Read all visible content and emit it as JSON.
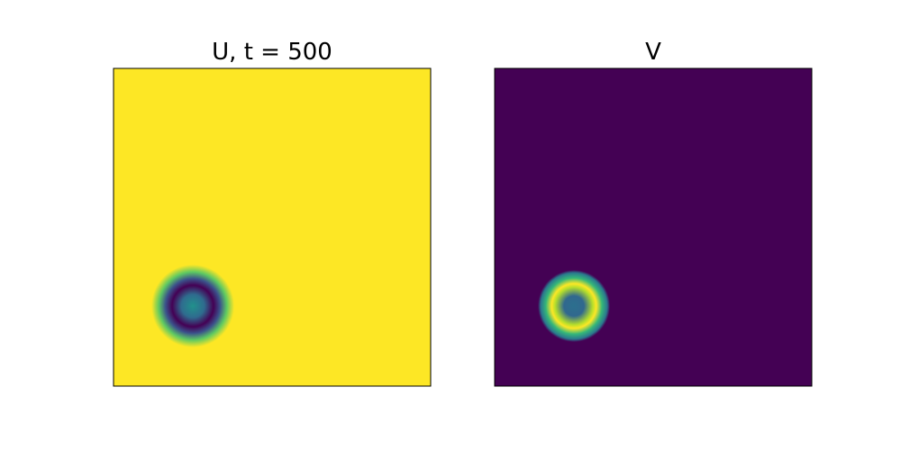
{
  "chart_data": [
    {
      "type": "heatmap",
      "title": "U, t = 500",
      "field": "U",
      "time": 500,
      "colormap": "viridis",
      "background_value": 1.0,
      "feature": {
        "shape": "ring",
        "center_frac": [
          0.25,
          0.25
        ],
        "ring_radius_frac": 0.075,
        "ring_width_frac": 0.04,
        "ring_value": 0.0,
        "center_value": 0.45,
        "outer_extent_frac": 0.13
      },
      "axes_ticks": false
    },
    {
      "type": "heatmap",
      "title": "V",
      "field": "V",
      "colormap": "viridis",
      "background_value": 0.0,
      "feature": {
        "shape": "ring",
        "center_frac": [
          0.25,
          0.25
        ],
        "ring_radius_frac": 0.07,
        "ring_width_frac": 0.035,
        "ring_value": 1.0,
        "center_value": 0.3,
        "outer_extent_frac": 0.11
      },
      "axes_ticks": false
    }
  ]
}
